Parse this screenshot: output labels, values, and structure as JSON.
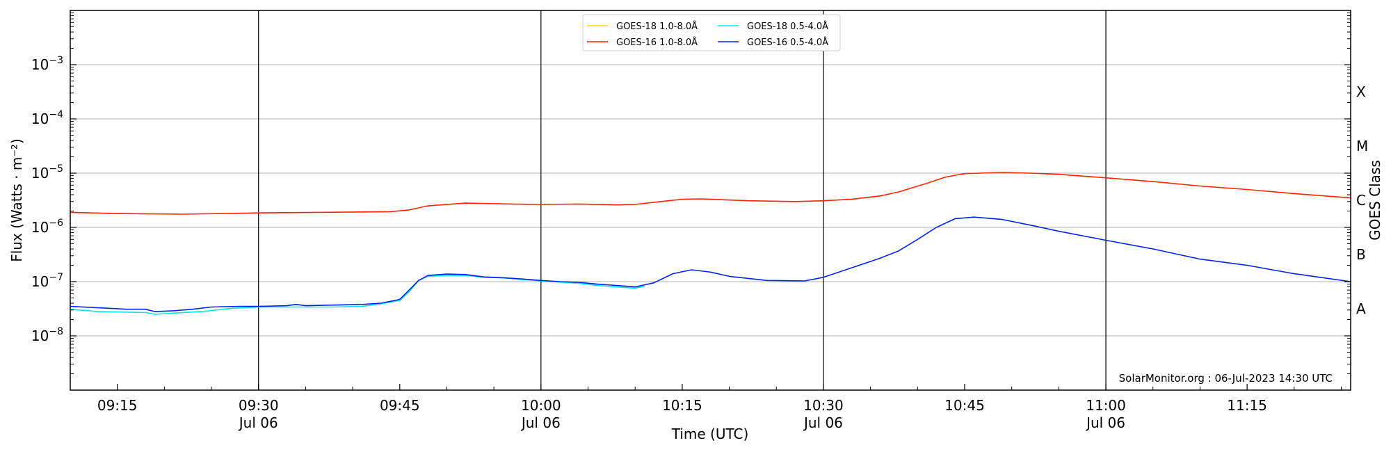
{
  "chart_data": {
    "type": "line",
    "xlabel": "Time (UTC)",
    "ylabel": "Flux (Watts · m⁻²)",
    "right_label": "GOES Class",
    "footer": "SolarMonitor.org : 06-Jul-2023 14:30 UTC",
    "x_range": [
      "09:10",
      "11:26"
    ],
    "ylim": [
      1e-09,
      0.01
    ],
    "y_scale": "log",
    "grid": "horizontal",
    "y_ticks": [
      {
        "value": 1e-08,
        "base": "10",
        "exp": "−8"
      },
      {
        "value": 1e-07,
        "base": "10",
        "exp": "−7"
      },
      {
        "value": 1e-06,
        "base": "10",
        "exp": "−6"
      },
      {
        "value": 1e-05,
        "base": "10",
        "exp": "−5"
      },
      {
        "value": 0.0001,
        "base": "10",
        "exp": "−4"
      },
      {
        "value": 0.001,
        "base": "10",
        "exp": "−3"
      }
    ],
    "x_ticks": [
      {
        "time": "09:15",
        "label": "09:15",
        "sublabel": ""
      },
      {
        "time": "09:30",
        "label": "09:30",
        "sublabel": "Jul 06"
      },
      {
        "time": "09:45",
        "label": "09:45",
        "sublabel": ""
      },
      {
        "time": "10:00",
        "label": "10:00",
        "sublabel": "Jul 06"
      },
      {
        "time": "10:15",
        "label": "10:15",
        "sublabel": ""
      },
      {
        "time": "10:30",
        "label": "10:30",
        "sublabel": "Jul 06"
      },
      {
        "time": "10:45",
        "label": "10:45",
        "sublabel": ""
      },
      {
        "time": "11:00",
        "label": "11:00",
        "sublabel": "Jul 06"
      },
      {
        "time": "11:15",
        "label": "11:15",
        "sublabel": ""
      }
    ],
    "vlines": [
      "09:30",
      "10:00",
      "10:30",
      "11:00"
    ],
    "goes_classes": [
      {
        "label": "A",
        "value": 3.16e-08
      },
      {
        "label": "B",
        "value": 3.16e-07
      },
      {
        "label": "C",
        "value": 3.16e-06
      },
      {
        "label": "M",
        "value": 3.16e-05
      },
      {
        "label": "X",
        "value": 0.000316
      }
    ],
    "legend_placement": "top-center",
    "series": [
      {
        "name": "GOES-18 1.0-8.0Å",
        "color": "#ffd700",
        "points": []
      },
      {
        "name": "GOES-18 0.5-4.0Å",
        "color": "#00e5ee",
        "points": [
          [
            "09:10",
            3.1e-08
          ],
          [
            "09:13",
            2.8e-08
          ],
          [
            "09:18",
            2.7e-08
          ],
          [
            "09:19",
            2.5e-08
          ],
          [
            "09:22",
            2.7e-08
          ],
          [
            "09:24",
            2.8e-08
          ],
          [
            "09:27",
            3.2e-08
          ],
          [
            "09:30",
            3.4e-08
          ],
          [
            "09:33",
            3.4e-08
          ],
          [
            "09:35",
            3.4e-08
          ],
          [
            "09:38",
            3.4e-08
          ],
          [
            "09:41",
            3.5e-08
          ],
          [
            "09:43",
            3.9e-08
          ],
          [
            "09:45",
            4.5e-08
          ],
          [
            "09:46",
            6.5e-08
          ],
          [
            "09:47",
            1.05e-07
          ],
          [
            "09:48",
            1.25e-07
          ],
          [
            "09:50",
            1.3e-07
          ],
          [
            "09:52",
            1.3e-07
          ],
          [
            "09:54",
            1.2e-07
          ],
          [
            "09:56",
            1.17e-07
          ],
          [
            "09:58",
            1.1e-07
          ],
          [
            "10:00",
            1.03e-07
          ],
          [
            "10:02",
            9.8e-08
          ],
          [
            "10:04",
            9.3e-08
          ],
          [
            "10:06",
            8.5e-08
          ],
          [
            "10:08",
            8e-08
          ],
          [
            "10:10",
            7.6e-08
          ],
          [
            "10:11",
            8.2e-08
          ]
        ]
      },
      {
        "name": "GOES-16 1.0-8.0Å",
        "color": "#ff2200",
        "points": [
          [
            "09:10",
            1.9e-06
          ],
          [
            "09:15",
            1.8e-06
          ],
          [
            "09:22",
            1.75e-06
          ],
          [
            "09:30",
            1.85e-06
          ],
          [
            "09:37",
            1.9e-06
          ],
          [
            "09:44",
            1.95e-06
          ],
          [
            "09:46",
            2.1e-06
          ],
          [
            "09:48",
            2.5e-06
          ],
          [
            "09:52",
            2.8e-06
          ],
          [
            "09:57",
            2.7e-06
          ],
          [
            "10:00",
            2.65e-06
          ],
          [
            "10:04",
            2.7e-06
          ],
          [
            "10:08",
            2.6e-06
          ],
          [
            "10:10",
            2.65e-06
          ],
          [
            "10:12",
            2.9e-06
          ],
          [
            "10:15",
            3.3e-06
          ],
          [
            "10:17",
            3.35e-06
          ],
          [
            "10:22",
            3.1e-06
          ],
          [
            "10:27",
            3e-06
          ],
          [
            "10:30",
            3.1e-06
          ],
          [
            "10:33",
            3.3e-06
          ],
          [
            "10:36",
            3.8e-06
          ],
          [
            "10:38",
            4.5e-06
          ],
          [
            "10:41",
            6.5e-06
          ],
          [
            "10:43",
            8.5e-06
          ],
          [
            "10:45",
            9.8e-06
          ],
          [
            "10:49",
            1.03e-05
          ],
          [
            "10:52",
            1e-05
          ],
          [
            "10:55",
            9.5e-06
          ],
          [
            "11:00",
            8.2e-06
          ],
          [
            "11:05",
            7e-06
          ],
          [
            "11:10",
            5.8e-06
          ],
          [
            "11:15",
            5e-06
          ],
          [
            "11:20",
            4.2e-06
          ],
          [
            "11:26",
            3.5e-06
          ]
        ]
      },
      {
        "name": "GOES-16 0.5-4.0Å",
        "color": "#0022ee",
        "points": [
          [
            "09:10",
            3.5e-08
          ],
          [
            "09:13",
            3.3e-08
          ],
          [
            "09:16",
            3.1e-08
          ],
          [
            "09:18",
            3.1e-08
          ],
          [
            "09:19",
            2.8e-08
          ],
          [
            "09:21",
            2.9e-08
          ],
          [
            "09:23",
            3.1e-08
          ],
          [
            "09:25",
            3.4e-08
          ],
          [
            "09:28",
            3.5e-08
          ],
          [
            "09:30",
            3.5e-08
          ],
          [
            "09:33",
            3.6e-08
          ],
          [
            "09:34",
            3.8e-08
          ],
          [
            "09:35",
            3.6e-08
          ],
          [
            "09:38",
            3.7e-08
          ],
          [
            "09:41",
            3.8e-08
          ],
          [
            "09:43",
            4e-08
          ],
          [
            "09:45",
            4.7e-08
          ],
          [
            "09:46",
            7e-08
          ],
          [
            "09:47",
            1.05e-07
          ],
          [
            "09:48",
            1.3e-07
          ],
          [
            "09:50",
            1.38e-07
          ],
          [
            "09:52",
            1.35e-07
          ],
          [
            "09:54",
            1.22e-07
          ],
          [
            "09:56",
            1.18e-07
          ],
          [
            "09:58",
            1.12e-07
          ],
          [
            "10:00",
            1.05e-07
          ],
          [
            "10:02",
            1e-07
          ],
          [
            "10:04",
            9.7e-08
          ],
          [
            "10:06",
            9e-08
          ],
          [
            "10:08",
            8.5e-08
          ],
          [
            "10:10",
            8e-08
          ],
          [
            "10:12",
            9.5e-08
          ],
          [
            "10:14",
            1.4e-07
          ],
          [
            "10:16",
            1.65e-07
          ],
          [
            "10:18",
            1.5e-07
          ],
          [
            "10:20",
            1.25e-07
          ],
          [
            "10:24",
            1.05e-07
          ],
          [
            "10:28",
            1.03e-07
          ],
          [
            "10:30",
            1.2e-07
          ],
          [
            "10:33",
            1.8e-07
          ],
          [
            "10:36",
            2.7e-07
          ],
          [
            "10:38",
            3.7e-07
          ],
          [
            "10:40",
            6e-07
          ],
          [
            "10:42",
            1e-06
          ],
          [
            "10:44",
            1.45e-06
          ],
          [
            "10:46",
            1.55e-06
          ],
          [
            "10:49",
            1.4e-06
          ],
          [
            "10:52",
            1.1e-06
          ],
          [
            "10:55",
            8.5e-07
          ],
          [
            "11:00",
            5.8e-07
          ],
          [
            "11:05",
            4e-07
          ],
          [
            "11:10",
            2.6e-07
          ],
          [
            "11:15",
            2e-07
          ],
          [
            "11:20",
            1.4e-07
          ],
          [
            "11:26",
            1e-07
          ]
        ]
      }
    ]
  }
}
